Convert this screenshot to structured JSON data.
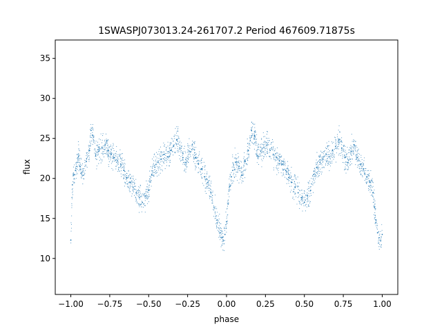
{
  "chart_data": {
    "type": "scatter",
    "title": "1SWASPJ073013.24-261707.2 Period 467609.71875s",
    "xlabel": "phase",
    "ylabel": "flux",
    "xlim": [
      -1.1,
      1.1
    ],
    "ylim": [
      5.5,
      37.3
    ],
    "xticks": [
      -1.0,
      -0.75,
      -0.5,
      -0.25,
      0.0,
      0.25,
      0.5,
      0.75,
      1.0
    ],
    "xtick_labels": [
      "−1.00",
      "−0.75",
      "−0.50",
      "−0.25",
      "0.00",
      "0.25",
      "0.50",
      "0.75",
      "1.00"
    ],
    "yticks": [
      10,
      15,
      20,
      25,
      30,
      35
    ],
    "ytick_labels": [
      "10",
      "15",
      "20",
      "25",
      "30",
      "35"
    ],
    "grid": false,
    "marker_color": "#1f77b4",
    "series": [
      {
        "x": [
          -1.0,
          -0.99,
          -0.98,
          -0.97,
          -0.96,
          -0.95,
          -0.94,
          -0.92,
          -0.9,
          -0.88,
          -0.87,
          -0.86,
          -0.84,
          -0.82,
          -0.8,
          -0.78,
          -0.76,
          -0.74,
          -0.72,
          -0.7,
          -0.68,
          -0.66,
          -0.64,
          -0.62,
          -0.6,
          -0.58,
          -0.56,
          -0.54,
          -0.52,
          -0.5,
          -0.48,
          -0.46,
          -0.44,
          -0.42,
          -0.4,
          -0.38,
          -0.36,
          -0.34,
          -0.32,
          -0.3,
          -0.28,
          -0.26,
          -0.24,
          -0.22,
          -0.2,
          -0.18,
          -0.16,
          -0.14,
          -0.12,
          -0.1,
          -0.08,
          -0.06,
          -0.04,
          -0.03,
          -0.02,
          -0.01,
          0.0,
          0.01,
          0.02,
          0.03,
          0.04,
          0.06,
          0.08,
          0.1,
          0.12,
          0.14,
          0.16,
          0.18,
          0.2,
          0.22,
          0.24,
          0.26,
          0.28,
          0.3,
          0.32,
          0.34,
          0.36,
          0.38,
          0.4,
          0.42,
          0.44,
          0.46,
          0.48,
          0.5,
          0.52,
          0.54,
          0.56,
          0.58,
          0.6,
          0.62,
          0.64,
          0.66,
          0.68,
          0.7,
          0.72,
          0.74,
          0.76,
          0.78,
          0.8,
          0.82,
          0.84,
          0.86,
          0.88,
          0.9,
          0.92,
          0.94,
          0.95,
          0.96,
          0.97,
          0.98,
          0.99,
          1.0
        ],
        "y": [
          12.3,
          19.2,
          20.5,
          21.0,
          22.0,
          22.8,
          21.5,
          20.4,
          22.1,
          23.5,
          26.0,
          25.4,
          22.8,
          23.4,
          23.9,
          24.2,
          23.5,
          23.0,
          22.6,
          22.2,
          21.8,
          21.0,
          20.1,
          19.5,
          18.9,
          18.2,
          17.6,
          17.0,
          17.8,
          18.5,
          20.5,
          21.4,
          22.0,
          22.4,
          23.0,
          22.7,
          23.5,
          24.0,
          24.8,
          23.8,
          22.6,
          22.0,
          23.4,
          24.2,
          22.6,
          21.8,
          21.2,
          20.2,
          19.5,
          18.2,
          16.4,
          14.8,
          13.2,
          12.6,
          12.2,
          13.0,
          14.6,
          16.8,
          19.0,
          20.2,
          21.0,
          22.0,
          21.5,
          20.4,
          22.1,
          23.5,
          26.0,
          25.4,
          22.8,
          23.4,
          23.9,
          24.2,
          23.5,
          23.0,
          22.6,
          22.2,
          21.8,
          21.0,
          20.1,
          19.5,
          18.9,
          18.2,
          17.6,
          17.0,
          17.8,
          18.5,
          20.5,
          21.4,
          22.0,
          22.4,
          23.0,
          22.7,
          23.5,
          24.0,
          24.8,
          23.8,
          22.6,
          22.0,
          23.4,
          24.2,
          22.6,
          21.8,
          21.2,
          20.2,
          19.5,
          18.2,
          16.4,
          14.8,
          13.2,
          12.6,
          12.2,
          13.0
        ]
      }
    ]
  }
}
